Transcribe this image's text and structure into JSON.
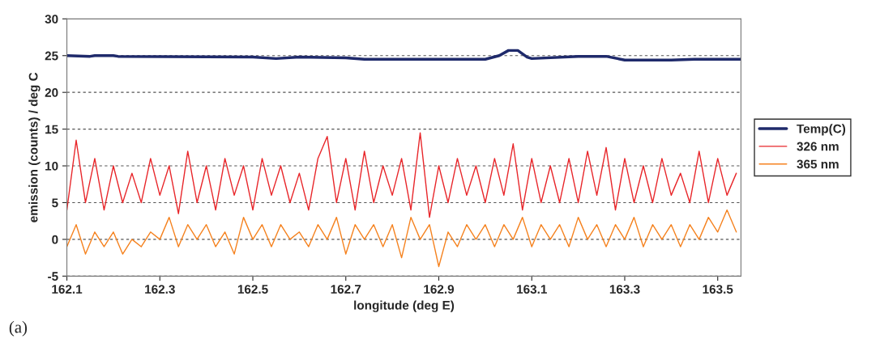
{
  "chart_data": {
    "type": "line",
    "xlabel": "longitude (deg E)",
    "ylabel": "emission (counts) / deg C",
    "annotations": [
      "(a)"
    ],
    "x": [
      162.1,
      162.12,
      162.14,
      162.16,
      162.18,
      162.2,
      162.22,
      162.24,
      162.26,
      162.28,
      162.3,
      162.32,
      162.34,
      162.36,
      162.38,
      162.4,
      162.42,
      162.44,
      162.46,
      162.48,
      162.5,
      162.52,
      162.54,
      162.56,
      162.58,
      162.6,
      162.62,
      162.64,
      162.66,
      162.68,
      162.7,
      162.72,
      162.74,
      162.76,
      162.78,
      162.8,
      162.82,
      162.84,
      162.86,
      162.88,
      162.9,
      162.92,
      162.94,
      162.96,
      162.98,
      163.0,
      163.02,
      163.04,
      163.06,
      163.08,
      163.1,
      163.12,
      163.14,
      163.16,
      163.18,
      163.2,
      163.22,
      163.24,
      163.26,
      163.28,
      163.3,
      163.32,
      163.34,
      163.36,
      163.38,
      163.4,
      163.42,
      163.44,
      163.46,
      163.48,
      163.5,
      163.52,
      163.54
    ],
    "series": [
      {
        "name": "Temp(C)",
        "color": "#1f2a6b",
        "x": [
          162.1,
          162.15,
          162.16,
          162.2,
          162.21,
          162.5,
          162.55,
          162.6,
          162.7,
          162.74,
          162.8,
          163.0,
          163.03,
          163.05,
          163.07,
          163.09,
          163.1,
          163.2,
          163.26,
          163.3,
          163.4,
          163.45,
          163.55
        ],
        "values": [
          25.0,
          24.9,
          25.0,
          25.0,
          24.9,
          24.8,
          24.6,
          24.8,
          24.7,
          24.5,
          24.5,
          24.5,
          25.0,
          25.7,
          25.7,
          24.8,
          24.6,
          24.9,
          24.9,
          24.4,
          24.4,
          24.5,
          24.5
        ]
      },
      {
        "name": "326 nm",
        "color": "#e8262a",
        "values": [
          4,
          13.5,
          5,
          11,
          4,
          10,
          5,
          9,
          5,
          11,
          6,
          10,
          3.5,
          12,
          5,
          10,
          4,
          11,
          6,
          10,
          4,
          11,
          6,
          10,
          5,
          9,
          4,
          11,
          14,
          5,
          11,
          4,
          12,
          5,
          10,
          6,
          11,
          4,
          14.5,
          3,
          10,
          5,
          11,
          6,
          10,
          5,
          11,
          6,
          13,
          4,
          11,
          5,
          10,
          5,
          11,
          5,
          12,
          6,
          12.5,
          4,
          11,
          5,
          10,
          5,
          11,
          6,
          9,
          5,
          12,
          5,
          11,
          6,
          9
        ]
      },
      {
        "name": "365 nm",
        "color": "#f5821f",
        "values": [
          -1,
          2,
          -2,
          1,
          -1,
          1,
          -2,
          0,
          -1,
          1,
          0,
          3,
          -1,
          2,
          0,
          2,
          -1,
          1,
          -2,
          3,
          0,
          2,
          -1,
          2,
          0,
          1,
          -1,
          2,
          0,
          3,
          -2,
          2,
          0,
          2,
          -1,
          2,
          -2.5,
          3,
          0,
          2,
          -3.7,
          1,
          -1,
          2,
          0,
          2,
          -1,
          2,
          0,
          3,
          -1,
          2,
          0,
          2,
          -1,
          3,
          0,
          2,
          -1,
          2,
          0,
          3,
          -1,
          2,
          0,
          2,
          -1,
          2,
          0,
          3,
          1,
          4,
          1
        ]
      }
    ],
    "xlim": [
      162.1,
      163.55
    ],
    "xticks": [
      162.1,
      162.3,
      162.5,
      162.7,
      162.9,
      163.1,
      163.3,
      163.5
    ],
    "ylim": [
      -5,
      30
    ],
    "yticks": [
      -5,
      0,
      5,
      10,
      15,
      20,
      25,
      30
    ],
    "grid": "y",
    "legend": "right",
    "marker": "none",
    "line_style": "solid"
  }
}
